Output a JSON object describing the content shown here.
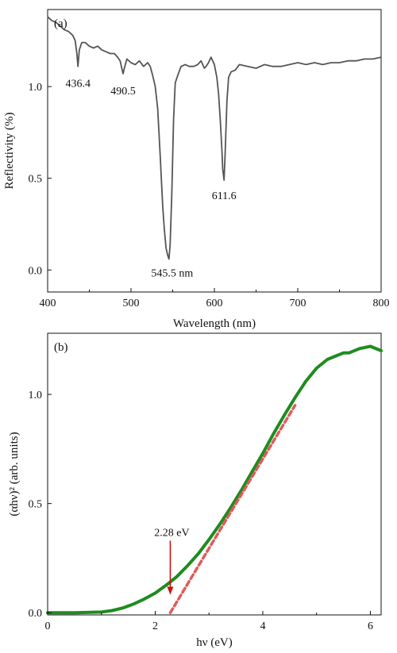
{
  "chart_data": [
    {
      "type": "line",
      "panel_label": "(a)",
      "xlabel": "Wavelength (nm)",
      "ylabel": "Reflectivity (%)",
      "xlim": [
        400,
        800
      ],
      "ylim": [
        -0.12,
        1.42
      ],
      "xticks": [
        400,
        500,
        600,
        700,
        800
      ],
      "xtick_labels": [
        "400",
        "500",
        "600",
        "700",
        "800"
      ],
      "yticks": [
        0.0,
        0.5,
        1.0
      ],
      "ytick_labels": [
        "0.0",
        "0.5",
        "1.0"
      ],
      "grid": false,
      "line_color": "#555555",
      "series": [
        {
          "x": [
            400,
            405,
            410,
            415,
            420,
            425,
            430,
            433,
            435,
            436.4,
            438,
            441,
            445,
            450,
            455,
            460,
            465,
            470,
            475,
            480,
            484,
            487,
            489,
            490.5,
            492,
            495,
            500,
            505,
            510,
            515,
            520,
            523,
            526,
            529,
            532,
            535,
            538,
            540,
            542,
            544,
            545.5,
            547,
            549,
            551,
            553,
            556,
            560,
            565,
            570,
            575,
            580,
            584,
            586,
            588,
            590,
            593,
            596,
            600,
            603,
            605,
            607,
            609,
            610,
            611.6,
            613,
            615,
            617,
            620,
            625,
            630,
            640,
            650,
            660,
            670,
            680,
            690,
            700,
            710,
            720,
            730,
            740,
            750,
            760,
            770,
            780,
            790,
            800
          ],
          "y": [
            1.38,
            1.36,
            1.35,
            1.33,
            1.31,
            1.3,
            1.28,
            1.25,
            1.18,
            1.11,
            1.2,
            1.24,
            1.24,
            1.22,
            1.21,
            1.22,
            1.2,
            1.19,
            1.18,
            1.18,
            1.16,
            1.14,
            1.1,
            1.07,
            1.1,
            1.15,
            1.13,
            1.12,
            1.14,
            1.11,
            1.13,
            1.11,
            1.06,
            1.0,
            0.88,
            0.62,
            0.35,
            0.22,
            0.12,
            0.08,
            0.06,
            0.14,
            0.42,
            0.82,
            1.02,
            1.06,
            1.11,
            1.12,
            1.11,
            1.11,
            1.12,
            1.14,
            1.12,
            1.1,
            1.11,
            1.13,
            1.16,
            1.12,
            1.05,
            0.96,
            0.82,
            0.66,
            0.55,
            0.49,
            0.64,
            0.92,
            1.05,
            1.08,
            1.09,
            1.12,
            1.11,
            1.1,
            1.12,
            1.11,
            1.11,
            1.12,
            1.13,
            1.12,
            1.13,
            1.12,
            1.13,
            1.13,
            1.14,
            1.14,
            1.15,
            1.15,
            1.16
          ]
        }
      ],
      "annotations": [
        {
          "text": "436.4",
          "x": 436.4,
          "y": 1.11
        },
        {
          "text": "490.5",
          "x": 490.5,
          "y": 1.07
        },
        {
          "text": "545.5 nm",
          "x": 545.5,
          "y": 0.06
        },
        {
          "text": "611.6",
          "x": 611.6,
          "y": 0.49
        }
      ]
    },
    {
      "type": "line",
      "panel_label": "(b)",
      "xlabel": "hν (eV)",
      "ylabel": "(αhν)² (arb. units)",
      "xlim": [
        0,
        6.2
      ],
      "ylim": [
        -0.01,
        1.28
      ],
      "xticks": [
        0,
        2,
        4,
        6
      ],
      "xtick_labels": [
        "0",
        "2",
        "4",
        "6"
      ],
      "yticks": [
        0.0,
        0.5,
        1.0
      ],
      "ytick_labels": [
        "0.0",
        "0.5",
        "1.0"
      ],
      "grid": false,
      "line_color": "#1e8c1e",
      "fit_color": "#e05a5a",
      "arrow_color": "#cc1111",
      "series": [
        {
          "x": [
            0,
            0.5,
            1.0,
            1.2,
            1.4,
            1.6,
            1.8,
            2.0,
            2.2,
            2.4,
            2.6,
            2.8,
            3.0,
            3.2,
            3.4,
            3.6,
            3.8,
            4.0,
            4.2,
            4.4,
            4.6,
            4.8,
            5.0,
            5.2,
            5.4,
            5.5,
            5.6,
            5.8,
            6.0,
            6.2
          ],
          "y": [
            0.0,
            0.0,
            0.003,
            0.01,
            0.022,
            0.04,
            0.063,
            0.09,
            0.125,
            0.165,
            0.215,
            0.27,
            0.335,
            0.405,
            0.48,
            0.56,
            0.645,
            0.73,
            0.82,
            0.905,
            0.985,
            1.06,
            1.12,
            1.16,
            1.18,
            1.19,
            1.19,
            1.21,
            1.22,
            1.2
          ]
        }
      ],
      "fit_line": {
        "x": [
          2.28,
          4.6
        ],
        "y": [
          0.0,
          0.95
        ]
      },
      "annotations": [
        {
          "text": "2.28 eV",
          "x": 2.28,
          "y": 0.09
        }
      ]
    }
  ]
}
